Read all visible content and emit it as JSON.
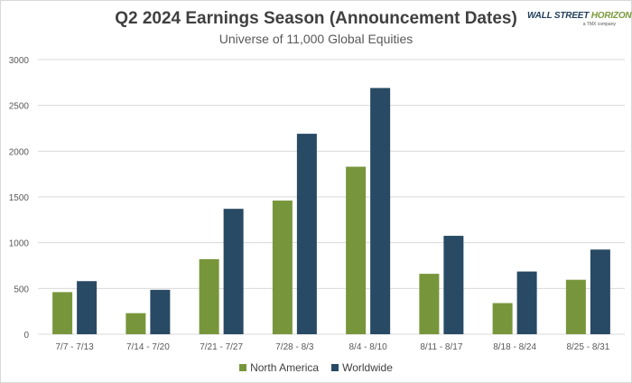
{
  "logo": {
    "text_main": "WALL STREET ",
    "text_accent": "HORIZON",
    "text_sub": "a TMX company"
  },
  "colors": {
    "north_america": "#77963b",
    "worldwide": "#284a64",
    "grid": "#d9d9d9",
    "axis_text": "#595959"
  },
  "chart_data": {
    "type": "bar",
    "title": "Q2 2024 Earnings Season (Announcement Dates)",
    "subtitle": "Universe of 11,000 Global Equities",
    "xlabel": "",
    "ylabel": "",
    "ylim": [
      0,
      3000
    ],
    "yticks": [
      0,
      500,
      1000,
      1500,
      2000,
      2500,
      3000
    ],
    "grid": true,
    "legend_position": "bottom",
    "categories": [
      "7/7 - 7/13",
      "7/14 - 7/20",
      "7/21 - 7/27",
      "7/28 - 8/3",
      "8/4 - 8/10",
      "8/11 - 8/17",
      "8/18 - 8/24",
      "8/25 - 8/31"
    ],
    "series": [
      {
        "name": "North America",
        "values": [
          460,
          230,
          820,
          1460,
          1830,
          660,
          340,
          595
        ]
      },
      {
        "name": "Worldwide",
        "values": [
          580,
          485,
          1370,
          2190,
          2690,
          1075,
          685,
          925
        ]
      }
    ]
  }
}
